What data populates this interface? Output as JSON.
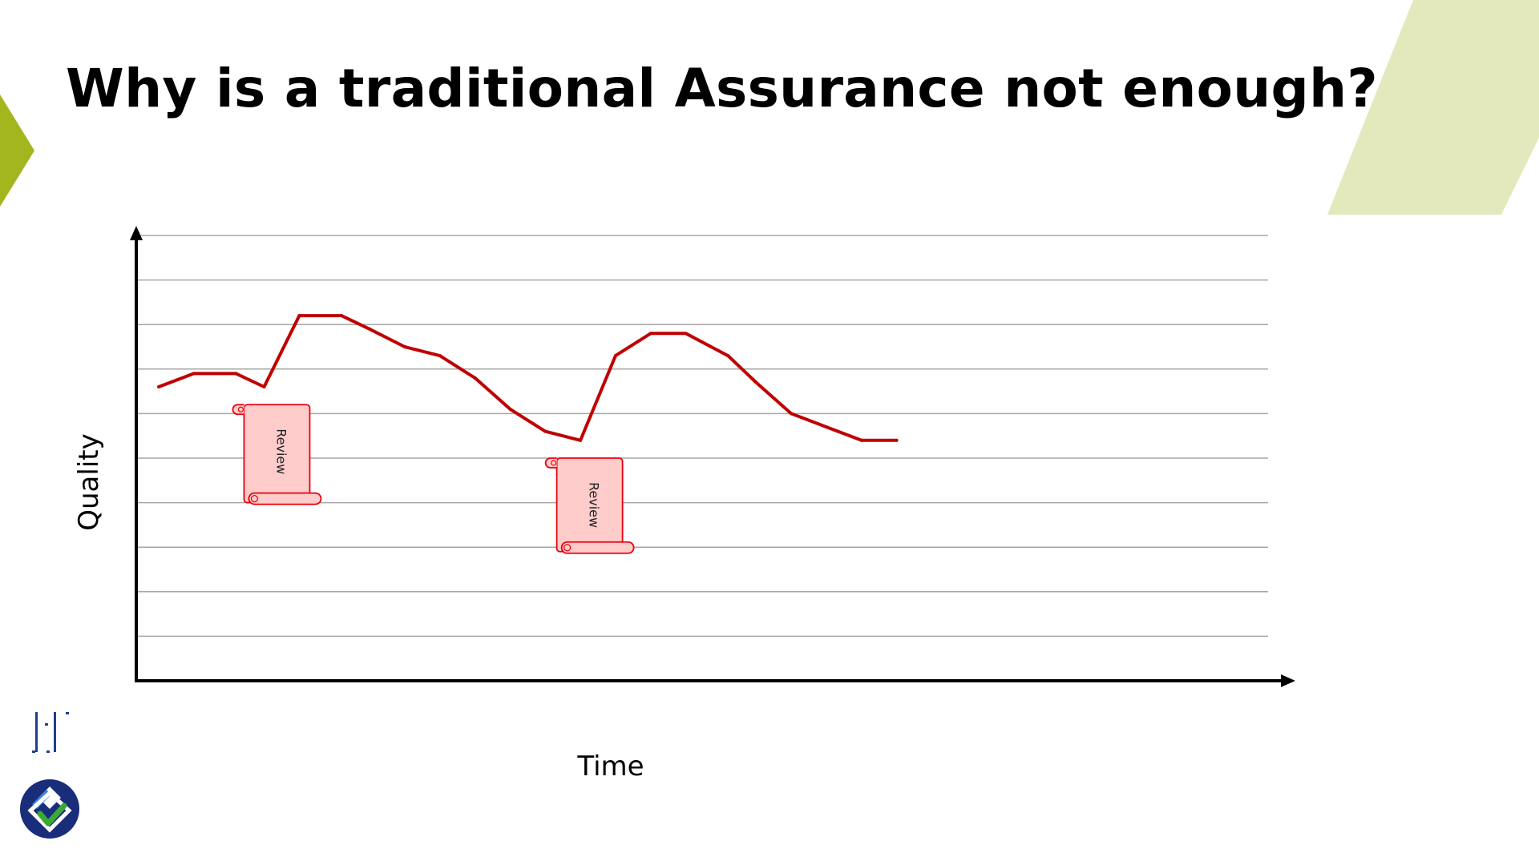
{
  "slide": {
    "title": "Why is a traditional Assurance not enough?"
  },
  "colors": {
    "accent_left": "#a4b61e",
    "accent_right": "#e3e9bd",
    "quality_line": "#c00000",
    "review_fill": "#ffcccc",
    "review_stroke": "#e8000b",
    "grid": "#a6a6a6",
    "axis": "#000000",
    "brand_navy": "#1f3f8f",
    "brand_dark_navy": "#1a2d7a"
  },
  "icons": {
    "bottom_logo": "diamond-check-logo",
    "top_logo": "pillars-logo"
  },
  "chart_data": {
    "type": "line",
    "title": "",
    "xlabel": "Time",
    "ylabel": "Quality",
    "xlim": [
      0,
      25
    ],
    "ylim": [
      0,
      10
    ],
    "grid": true,
    "legend": "none",
    "series": [
      {
        "x": [
          0,
          1,
          2.2,
          3,
          4,
          5.2,
          6,
          7,
          8,
          9,
          10,
          11,
          12,
          13,
          14,
          15,
          16.2,
          17,
          18,
          19,
          20,
          21
        ],
        "values": [
          6.6,
          6.9,
          6.9,
          6.6,
          8.2,
          8.2,
          7.9,
          7.5,
          7.3,
          6.8,
          6.1,
          5.6,
          5.4,
          7.3,
          7.8,
          7.8,
          7.3,
          6.7,
          6.0,
          5.7,
          5.4,
          5.4
        ]
      }
    ],
    "annotations": [
      {
        "label": "Review",
        "x": 3.5,
        "y_top": 6.2,
        "y_bottom": 4.0
      },
      {
        "label": "Review",
        "x": 12.4,
        "y_top": 5.0,
        "y_bottom": 2.9
      }
    ]
  }
}
